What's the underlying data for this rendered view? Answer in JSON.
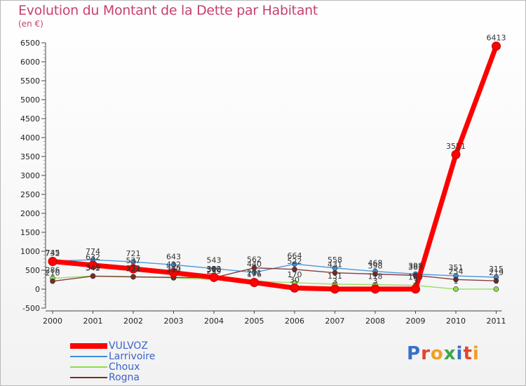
{
  "header": {
    "title": "Evolution du Montant de la Dette par Habitant",
    "unit": "(en €)"
  },
  "logo": {
    "text": "Proxiti"
  },
  "chart_data": {
    "type": "line",
    "title": "Evolution du Montant de la Dette par Habitant",
    "ylabel": "(en €)",
    "xlabel": "",
    "ylim": [
      -500,
      6500
    ],
    "yticks": [
      -500,
      0,
      500,
      1000,
      1500,
      2000,
      2500,
      3000,
      3500,
      4000,
      4500,
      5000,
      5500,
      6000,
      6500
    ],
    "grid": false,
    "legend_position": "bottom-left",
    "categories": [
      "2000",
      "2001",
      "2002",
      "2003",
      "2004",
      "2005",
      "2006",
      "2007",
      "2008",
      "2009",
      "2010",
      "2011"
    ],
    "series": [
      {
        "name": "VULVOZ",
        "color": "#ff0000",
        "values": [
          732,
          632,
          537,
          432,
          312,
          176,
          30,
          3,
          3,
          3,
          3551,
          6413
        ],
        "labels": [
          "732",
          "632",
          "537",
          "432",
          "312",
          "176",
          "30",
          "3",
          "3",
          "3",
          "3551",
          "6413"
        ]
      },
      {
        "name": "Larrivoire",
        "color": "#3a8fd8",
        "values": [
          745,
          774,
          721,
          643,
          543,
          440,
          664,
          558,
          468,
          398,
          351,
          315
        ],
        "labels": [
          "745",
          "774",
          "721",
          "643",
          "543",
          "440",
          "664",
          "558",
          "468",
          "398",
          "351",
          "315"
        ]
      },
      {
        "name": "Choux",
        "color": "#8fdc4f",
        "values": [
          286,
          349,
          331,
          297,
          259,
          211,
          170,
          131,
          118,
          100,
          1,
          1
        ],
        "labels": [
          "286",
          "349",
          "331",
          "297",
          "259",
          "211",
          "170",
          "131",
          "118",
          "100",
          "1",
          "1"
        ]
      },
      {
        "name": "Rogna",
        "color": "#7a2a2a",
        "values": [
          210,
          342,
          322,
          310,
          300,
          562,
          522,
          431,
          398,
          363,
          254,
          219
        ],
        "labels": [
          "210",
          "342",
          "322",
          "310",
          "300",
          "562",
          "522",
          "431",
          "398",
          "363",
          "254",
          "219"
        ]
      }
    ]
  }
}
